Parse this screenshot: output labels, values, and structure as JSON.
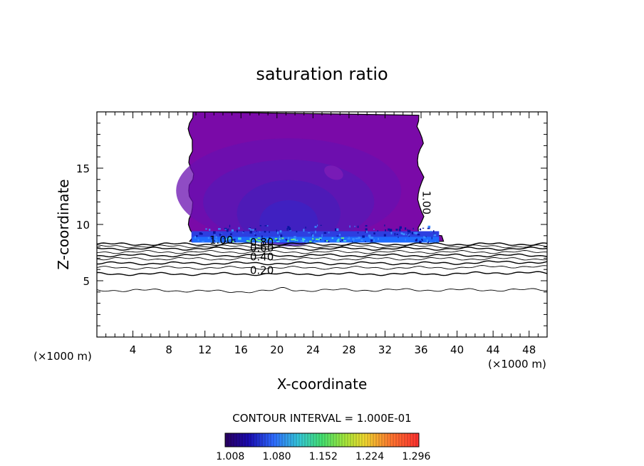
{
  "chart_data": {
    "type": "heatmap",
    "title": "saturation ratio",
    "xlabel": "X-coordinate",
    "ylabel": "Z-coordinate",
    "x_unit": "(×1000 m)",
    "z_unit": "(×1000 m)",
    "xlim": [
      0,
      50
    ],
    "ylim": [
      0,
      20
    ],
    "x_ticks": [
      4,
      8,
      12,
      16,
      20,
      24,
      28,
      32,
      36,
      40,
      44,
      48
    ],
    "y_ticks": [
      5,
      10,
      15
    ],
    "contour_interval_label": "CONTOUR INTERVAL = 1.000E-01",
    "colorbar_labels": [
      "1.008",
      "1.080",
      "1.152",
      "1.224",
      "1.296"
    ],
    "colorbar_range": [
      1.0,
      1.3
    ],
    "contour_labels": [
      {
        "text": "1.00",
        "x": 12.5,
        "z": 8.3
      },
      {
        "text": "1.00",
        "x": 36.2,
        "z": 13.0,
        "rotated": true
      },
      {
        "text": "0.80",
        "x": 17.0,
        "z": 8.1
      },
      {
        "text": "0.60",
        "x": 17.0,
        "z": 7.6
      },
      {
        "text": "0.40",
        "x": 17.0,
        "z": 6.8
      },
      {
        "text": "0.20",
        "x": 17.0,
        "z": 5.6
      }
    ],
    "cloud_region": {
      "x_range": [
        10.3,
        38.5
      ],
      "z_range": [
        8.4,
        20
      ],
      "base_value": 1.12,
      "mean_value": 1.01
    },
    "subsaturated_contours": [
      {
        "level": 1.0,
        "z_mean": 8.25
      },
      {
        "level": 0.9,
        "z_mean": 8.05
      },
      {
        "level": 0.8,
        "z_mean": 7.85
      },
      {
        "level": 0.7,
        "z_mean": 7.55
      },
      {
        "level": 0.6,
        "z_mean": 7.25
      },
      {
        "level": 0.5,
        "z_mean": 6.95
      },
      {
        "level": 0.4,
        "z_mean": 6.55
      },
      {
        "level": 0.3,
        "z_mean": 6.15
      },
      {
        "level": 0.2,
        "z_mean": 5.6
      },
      {
        "level": 0.1,
        "z_mean": 4.15
      }
    ]
  }
}
